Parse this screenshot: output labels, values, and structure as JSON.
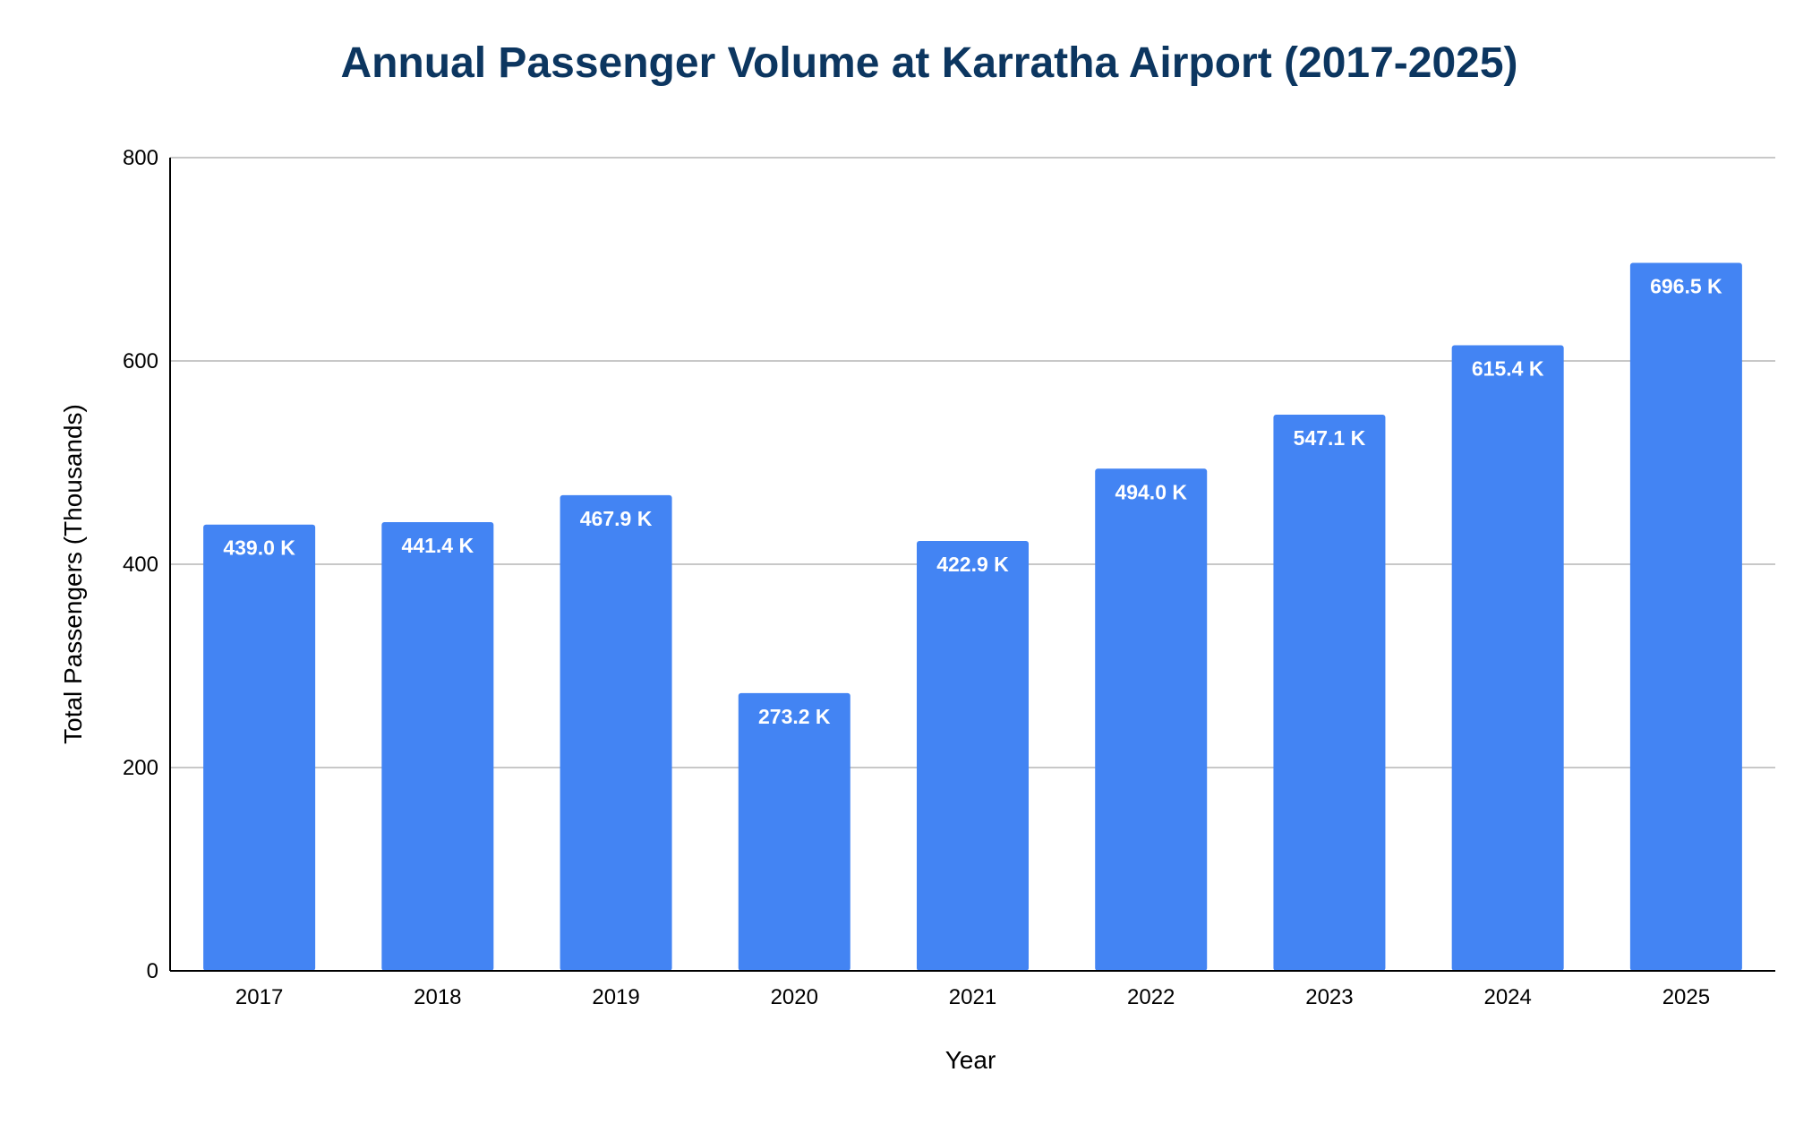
{
  "colors": {
    "bar": "#4384f3",
    "title": "#0c3660",
    "grid": "#c8c8c8",
    "axis": "#000000",
    "bar_label": "#ffffff"
  },
  "chart_data": {
    "type": "bar",
    "title": "Annual Passenger Volume at Karratha Airport (2017-2025)",
    "xlabel": "Year",
    "ylabel": "Total Passengers (Thousands)",
    "categories": [
      "2017",
      "2018",
      "2019",
      "2020",
      "2021",
      "2022",
      "2023",
      "2024",
      "2025"
    ],
    "values": [
      439.0,
      441.4,
      467.9,
      273.2,
      422.9,
      494.0,
      547.1,
      615.4,
      696.5
    ],
    "data_labels": [
      "439.0 K",
      "441.4 K",
      "467.9 K",
      "273.2 K",
      "422.9 K",
      "494.0 K",
      "547.1 K",
      "615.4 K",
      "696.5 K"
    ],
    "ylim": [
      0,
      800
    ],
    "yticks": [
      0,
      200,
      400,
      600,
      800
    ],
    "ytick_labels": [
      "0",
      "200",
      "400",
      "600",
      "800"
    ],
    "grid": true,
    "legend": "none"
  }
}
